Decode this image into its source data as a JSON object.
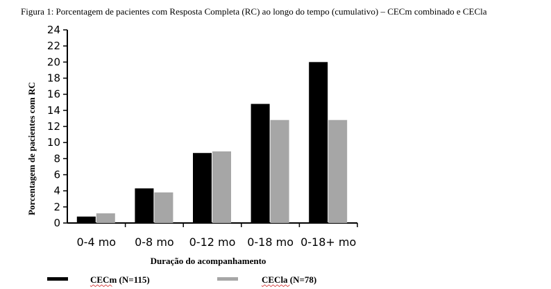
{
  "chart_data": {
    "type": "bar",
    "title": "Figura 1: Porcentagem de pacientes com Resposta Completa (RC) ao longo do tempo (cumulativo) – CECm combinado e CECla",
    "xlabel": "Duração do acompanhamento",
    "ylabel": "Porcentagem de pacientes com RC",
    "categories": [
      "0-4 mo",
      "0-8 mo",
      "0-12 mo",
      "0-18 mo",
      "0-18+ mo"
    ],
    "ylim": [
      0,
      24
    ],
    "yticks": [
      0,
      2,
      4,
      6,
      8,
      10,
      12,
      14,
      16,
      18,
      20,
      22,
      24
    ],
    "grid": false,
    "legend_position": "bottom",
    "series": [
      {
        "name": "CECm (N=115)",
        "color": "#000000",
        "values": [
          0.8,
          4.3,
          8.7,
          14.8,
          20.0
        ]
      },
      {
        "name": "CECla (N=78)",
        "color": "#a6a6a6",
        "values": [
          1.2,
          3.8,
          8.9,
          12.8,
          12.8
        ]
      }
    ]
  }
}
